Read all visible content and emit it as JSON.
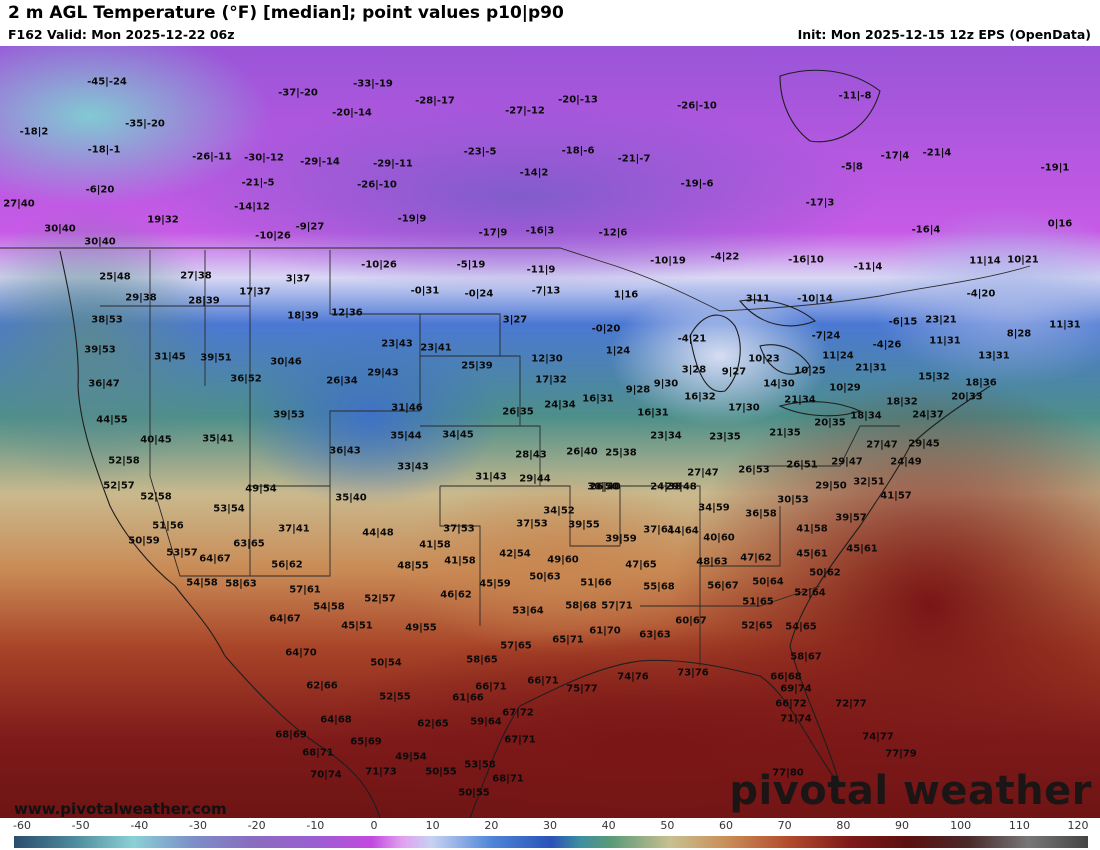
{
  "header": {
    "title": "2 m AGL Temperature (°F) [median]; point values p10|p90",
    "valid": "F162 Valid: Mon 2025-12-22 06z",
    "init": "Init: Mon 2025-12-15 12z EPS (OpenData)"
  },
  "map": {
    "units": "°F",
    "point_values": [
      "-45|-24",
      "-37|-20",
      "-33|-19",
      "-28|-17",
      "-20|-14",
      "-27|-12",
      "-20|-13",
      "-26|-10",
      "-11|-8",
      "-18|2",
      "-35|-20",
      "-18|-1",
      "-26|-11",
      "-30|-12",
      "-29|-14",
      "-29|-11",
      "-23|-5",
      "-18|-6",
      "-21|-7",
      "-14|2",
      "-5|8",
      "-17|4",
      "-21|4",
      "-19|1",
      "-6|20",
      "-21|-5",
      "-26|-10",
      "-19|-6",
      "-17|3",
      "27|40",
      "19|32",
      "-14|12",
      "-19|9",
      "-17|9",
      "-16|3",
      "-12|6",
      "-16|4",
      "0|16",
      "30|40",
      "30|40",
      "-10|26",
      "-9|27",
      "-10|26",
      "-5|19",
      "-11|9",
      "-10|19",
      "-4|22",
      "-16|10",
      "-11|4",
      "11|14",
      "10|21",
      "25|48",
      "27|38",
      "17|37",
      "3|37",
      "-0|31",
      "-0|24",
      "-7|13",
      "1|16",
      "3|11",
      "-10|14",
      "-4|20",
      "29|38",
      "28|39",
      "18|39",
      "12|36",
      "3|27",
      "-0|20",
      "-6|15",
      "23|21",
      "11|31",
      "38|53",
      "-4|21",
      "-7|24",
      "-4|26",
      "8|28",
      "39|53",
      "31|45",
      "39|51",
      "30|46",
      "23|43",
      "23|41",
      "12|30",
      "1|24",
      "11|24",
      "11|31",
      "13|31",
      "36|47",
      "36|52",
      "26|34",
      "29|43",
      "25|39",
      "17|32",
      "3|28",
      "9|27",
      "10|23",
      "10|25",
      "21|31",
      "15|32",
      "9|28",
      "9|30",
      "14|30",
      "10|29",
      "18|36",
      "44|55",
      "39|53",
      "31|46",
      "26|35",
      "24|34",
      "16|31",
      "16|32",
      "21|34",
      "18|32",
      "20|33",
      "40|45",
      "35|41",
      "35|44",
      "34|45",
      "16|31",
      "17|30",
      "18|34",
      "24|37",
      "52|58",
      "36|43",
      "33|43",
      "28|43",
      "26|40",
      "25|38",
      "23|34",
      "23|35",
      "21|35",
      "20|35",
      "29|45",
      "27|47",
      "52|57",
      "31|43",
      "29|44",
      "26|40",
      "24|38",
      "26|53",
      "26|51",
      "29|47",
      "24|49",
      "52|58",
      "49|54",
      "35|40",
      "30|50",
      "29|48",
      "27|47",
      "29|50",
      "32|51",
      "53|54",
      "34|52",
      "34|59",
      "36|58",
      "30|53",
      "41|57",
      "51|56",
      "37|41",
      "44|48",
      "37|53",
      "37|53",
      "39|55",
      "37|61",
      "39|57",
      "50|59",
      "63|65",
      "41|58",
      "39|59",
      "44|64",
      "40|60",
      "41|58",
      "45|61",
      "53|57",
      "64|67",
      "56|62",
      "48|55",
      "41|58",
      "42|54",
      "49|60",
      "47|65",
      "48|63",
      "47|62",
      "45|61",
      "54|58",
      "58|63",
      "57|61",
      "45|59",
      "50|63",
      "51|66",
      "55|68",
      "56|67",
      "50|64",
      "50|62",
      "52|57",
      "46|62",
      "54|58",
      "52|64",
      "64|67",
      "45|51",
      "49|55",
      "53|64",
      "58|68",
      "57|71",
      "51|65",
      "61|70",
      "60|67",
      "52|65",
      "54|65",
      "63|63",
      "64|70",
      "50|54",
      "57|65",
      "65|71",
      "58|67",
      "62|66",
      "58|65",
      "66|71",
      "66|71",
      "75|77",
      "74|76",
      "73|76",
      "66|68",
      "52|55",
      "61|66",
      "69|74",
      "64|68",
      "62|65",
      "59|64",
      "67|72",
      "66|72",
      "72|77",
      "68|69",
      "65|69",
      "67|71",
      "71|74",
      "74|77",
      "68|71",
      "49|54",
      "53|58",
      "77|79",
      "70|74",
      "71|73",
      "50|55",
      "68|71",
      "77|80",
      "50|55"
    ]
  },
  "footer": {
    "website": "www.pivotalweather.com",
    "brand": "pivotal weather"
  },
  "colorbar": {
    "ticks": [
      "-60",
      "-50",
      "-40",
      "-30",
      "-20",
      "-10",
      "0",
      "10",
      "20",
      "30",
      "40",
      "50",
      "60",
      "70",
      "80",
      "90",
      "100",
      "110",
      "120"
    ],
    "stops": [
      {
        "v": -60,
        "c": "#2b4d6e"
      },
      {
        "v": -50,
        "c": "#4d8a9c"
      },
      {
        "v": -40,
        "c": "#8ad1d6"
      },
      {
        "v": -30,
        "c": "#7c8fc7"
      },
      {
        "v": -20,
        "c": "#8a6cc0"
      },
      {
        "v": -10,
        "c": "#9a5fd0"
      },
      {
        "v": 0,
        "c": "#c24ae0"
      },
      {
        "v": 5,
        "c": "#e0a0f0"
      },
      {
        "v": 10,
        "c": "#c8d2f2"
      },
      {
        "v": 20,
        "c": "#4f86d8"
      },
      {
        "v": 30,
        "c": "#2a52b8"
      },
      {
        "v": 35,
        "c": "#3f8fa0"
      },
      {
        "v": 40,
        "c": "#5a9a78"
      },
      {
        "v": 50,
        "c": "#c8c090"
      },
      {
        "v": 60,
        "c": "#c98a55"
      },
      {
        "v": 70,
        "c": "#b24a2d"
      },
      {
        "v": 80,
        "c": "#7e1a1a"
      },
      {
        "v": 90,
        "c": "#5c1010"
      },
      {
        "v": 100,
        "c": "#4a2a2a"
      },
      {
        "v": 110,
        "c": "#777777"
      },
      {
        "v": 120,
        "c": "#444444"
      }
    ]
  }
}
